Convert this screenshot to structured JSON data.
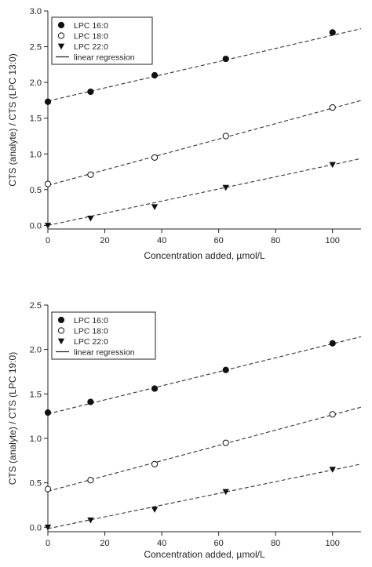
{
  "chart_data": [
    {
      "type": "scatter",
      "title": "",
      "xlabel": "Concentration added, µmol/L",
      "ylabel": "CTS (analyte) / CTS (LPC 13:0)",
      "xlim": [
        0,
        110
      ],
      "ylim": [
        -0.05,
        3.0
      ],
      "xticks": [
        0,
        20,
        40,
        60,
        80,
        100
      ],
      "xtick_labels": [
        "0",
        "20",
        "40",
        "60",
        "80",
        "100"
      ],
      "yticks": [
        0,
        0.5,
        1.0,
        1.5,
        2.0,
        2.5,
        3.0
      ],
      "ytick_labels": [
        "0.0",
        "0.5",
        "1.0",
        "1.5",
        "2.0",
        "2.5",
        "3.0"
      ],
      "legend_position": "top-left",
      "legend": [
        "LPC 16:0",
        "LPC 18:0",
        "LPC 22:0",
        "linear regression"
      ],
      "x": [
        0,
        15,
        37.5,
        62.5,
        100
      ],
      "series": [
        {
          "name": "LPC 16:0",
          "marker": "filled-circle",
          "values": [
            1.73,
            1.87,
            2.1,
            2.33,
            2.7
          ],
          "fit": [
            1.74,
            0.0092
          ]
        },
        {
          "name": "LPC 18:0",
          "marker": "open-circle",
          "values": [
            0.58,
            0.71,
            0.95,
            1.25,
            1.65
          ],
          "fit": [
            0.56,
            0.0108
          ]
        },
        {
          "name": "LPC 22:0",
          "marker": "filled-triangle",
          "values": [
            0.0,
            0.1,
            0.26,
            0.53,
            0.85
          ],
          "fit": [
            0.0,
            0.0085
          ]
        }
      ]
    },
    {
      "type": "scatter",
      "title": "",
      "xlabel": "Concentration added, µmol/L",
      "ylabel": "CTS (analyte) / CTS (LPC 19:0)",
      "xlim": [
        0,
        110
      ],
      "ylim": [
        -0.05,
        2.5
      ],
      "xticks": [
        0,
        20,
        40,
        60,
        80,
        100
      ],
      "xtick_labels": [
        "0",
        "20",
        "40",
        "60",
        "80",
        "100"
      ],
      "yticks": [
        0,
        0.5,
        1.0,
        1.5,
        2.0,
        2.5
      ],
      "ytick_labels": [
        "0.0",
        "0.5",
        "1.0",
        "1.5",
        "2.0",
        "2.5"
      ],
      "legend_position": "top-left",
      "legend": [
        "LPC 16:0",
        "LPC 18:0",
        "LPC 22:0",
        "linear regression"
      ],
      "x": [
        0,
        15,
        37.5,
        62.5,
        100
      ],
      "series": [
        {
          "name": "LPC 16:0",
          "marker": "filled-circle",
          "values": [
            1.29,
            1.41,
            1.56,
            1.77,
            2.07
          ],
          "fit": [
            1.275,
            0.0079
          ]
        },
        {
          "name": "LPC 18:0",
          "marker": "open-circle",
          "values": [
            0.43,
            0.53,
            0.71,
            0.95,
            1.27
          ],
          "fit": [
            0.405,
            0.0086
          ]
        },
        {
          "name": "LPC 22:0",
          "marker": "filled-triangle",
          "values": [
            0.0,
            0.08,
            0.2,
            0.4,
            0.65
          ],
          "fit": [
            -0.015,
            0.0066
          ]
        }
      ]
    }
  ]
}
